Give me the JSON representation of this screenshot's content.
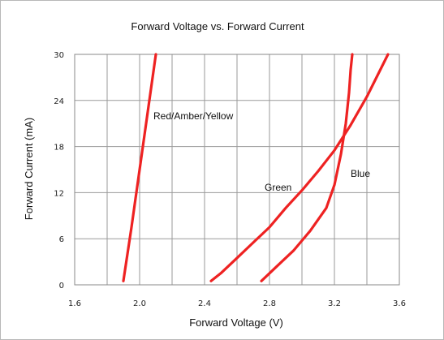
{
  "chart_data": {
    "type": "line",
    "title": "Forward Voltage vs. Forward Current",
    "xlabel": "Forward Voltage  (V)",
    "ylabel": "Forward Current  (mA)",
    "xlim": [
      1.6,
      3.6
    ],
    "ylim": [
      0,
      30
    ],
    "x_ticks": [
      1.6,
      2.0,
      2.4,
      2.8,
      3.2,
      3.6
    ],
    "x_tick_labels": [
      "1.6",
      "2.0",
      "2.4",
      "2.8",
      "3.2",
      "3.6"
    ],
    "y_ticks": [
      0,
      6,
      12,
      18,
      24,
      30
    ],
    "y_tick_labels": [
      "0",
      "6",
      "12",
      "18",
      "24",
      "30"
    ],
    "grid": true,
    "line_color": "#ee2222",
    "series": [
      {
        "name": "Red/Amber/Yellow",
        "x": [
          1.9,
          1.95,
          2.0,
          2.05,
          2.1
        ],
        "y": [
          0.5,
          7.5,
          15,
          22.5,
          30
        ]
      },
      {
        "name": "Green",
        "x": [
          2.44,
          2.5,
          2.6,
          2.7,
          2.8,
          2.9,
          3.0,
          3.1,
          3.2,
          3.3,
          3.4,
          3.53
        ],
        "y": [
          0.5,
          1.5,
          3.5,
          5.5,
          7.5,
          10,
          12.3,
          14.8,
          17.5,
          20.8,
          24.5,
          30
        ]
      },
      {
        "name": "Blue",
        "x": [
          2.75,
          2.85,
          2.95,
          3.05,
          3.15,
          3.2,
          3.24,
          3.27,
          3.29,
          3.3,
          3.31
        ],
        "y": [
          0.5,
          2.5,
          4.5,
          7.0,
          10.0,
          13.0,
          17.0,
          21.0,
          25.0,
          28.0,
          30.0
        ]
      }
    ]
  }
}
